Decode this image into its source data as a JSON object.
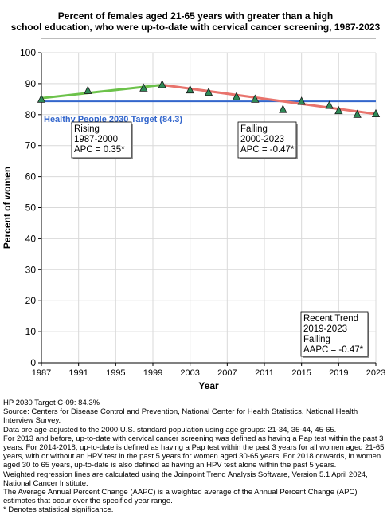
{
  "chart_data": {
    "type": "line",
    "title_line1": "Percent of females aged 21-65 years with greater than a high",
    "title_line2": "school education, who were up-to-date with cervical cancer screening, 1987-2023",
    "xlabel": "Year",
    "ylabel": "Percent of women",
    "xlim": [
      1987,
      2023
    ],
    "ylim": [
      0,
      100
    ],
    "xticks": [
      1987,
      1991,
      1995,
      1999,
      2003,
      2007,
      2011,
      2015,
      2019,
      2023
    ],
    "yticks": [
      0,
      10,
      20,
      30,
      40,
      50,
      60,
      70,
      80,
      90,
      100
    ],
    "grid": true,
    "target": {
      "label": "Healthy People 2030 Target (84.3)",
      "value": 84.3,
      "color": "#3366cc"
    },
    "observed": {
      "x": [
        1987,
        1992,
        1998,
        2000,
        2003,
        2005,
        2008,
        2010,
        2013,
        2015,
        2018,
        2019,
        2021,
        2023
      ],
      "y": [
        85.0,
        87.8,
        88.6,
        89.7,
        88.0,
        87.2,
        85.8,
        85.0,
        81.7,
        84.3,
        83.0,
        81.3,
        80.1,
        80.3
      ],
      "color": "#2e8b57"
    },
    "segments": [
      {
        "x": [
          1987,
          2000
        ],
        "y": [
          85.3,
          89.6
        ],
        "color": "#6cc24a"
      },
      {
        "x": [
          2000,
          2023
        ],
        "y": [
          89.6,
          80.2
        ],
        "color": "#e8736c"
      }
    ],
    "annotations": [
      {
        "lines": [
          "Rising",
          "1987-2000",
          "APC =  0.35*"
        ]
      },
      {
        "lines": [
          "Falling",
          "2000-2023",
          "APC = -0.47*"
        ]
      },
      {
        "lines": [
          "Recent Trend",
          "2019-2023",
          "Falling",
          "AAPC = -0.47*"
        ]
      }
    ]
  },
  "notes": [
    "HP 2030 Target C-09: 84.3%",
    "Source: Centers for Disease Control and Prevention, National Center for Health Statistics. National Health Interview Survey.",
    "Data are age-adjusted to the 2000 U.S. standard population using age groups: 21-34, 35-44, 45-65.",
    "For 2013 and before, up-to-date with cervical cancer screening was defined as having a Pap test within the past 3 years. For 2014-2018, up-to-date is defined as having a Pap test within the past 3 years for all women aged 21-65 years, with or without an HPV test in the past 5 years for women aged 30-65 years.  For 2018 onwards, in women aged 30 to 65 years, up-to-date is also defined as having an HPV test alone within the past 5 years.",
    "Weighted regression lines are calculated using the Joinpoint Trend Analysis Software, Version 5.1 April 2024, National Cancer Institute.",
    "The Average Annual Percent Change (AAPC) is a weighted average of the Annual Percent Change (APC) estimates that occur over the specified year range.",
    "* Denotes statistical significance."
  ]
}
